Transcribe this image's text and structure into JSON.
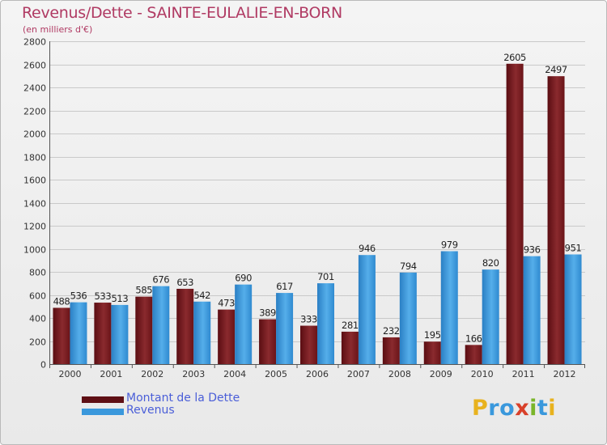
{
  "chart_data": {
    "type": "bar",
    "title": "Revenus/Dette - SAINTE-EULALIE-EN-BORN",
    "subtitle": "(en milliers d'€)",
    "categories": [
      "2000",
      "2001",
      "2002",
      "2003",
      "2004",
      "2005",
      "2006",
      "2007",
      "2008",
      "2009",
      "2010",
      "2011",
      "2012"
    ],
    "series": [
      {
        "name": "Montant de la Dette",
        "color": "#7a1a1e",
        "values": [
          488,
          533,
          585,
          653,
          473,
          389,
          333,
          281,
          232,
          195,
          166,
          2605,
          2497
        ]
      },
      {
        "name": "Revenus",
        "color": "#3a98dc",
        "values": [
          536,
          513,
          676,
          542,
          690,
          617,
          701,
          946,
          794,
          979,
          820,
          936,
          951
        ]
      }
    ],
    "ylim": [
      0,
      2800
    ],
    "yticks": [
      0,
      200,
      400,
      600,
      800,
      1000,
      1200,
      1400,
      1600,
      1800,
      2000,
      2200,
      2400,
      2600,
      2800
    ],
    "grid": true,
    "legend_position": "bottom-left"
  },
  "branding": {
    "logo_letters": [
      "P",
      "r",
      "o",
      "x",
      "i",
      "t",
      "i"
    ],
    "logo_colors": [
      "#e8b21e",
      "#3a98dc",
      "#3a98dc",
      "#d8402a",
      "#7ab52a",
      "#3a98dc",
      "#e8b21e"
    ]
  }
}
